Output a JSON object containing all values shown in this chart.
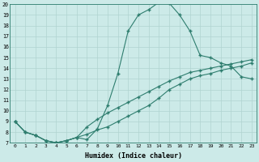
{
  "xlabel": "Humidex (Indice chaleur)",
  "x_values": [
    0,
    1,
    2,
    3,
    4,
    5,
    6,
    7,
    8,
    9,
    10,
    11,
    12,
    13,
    14,
    15,
    16,
    17,
    18,
    19,
    20,
    21,
    22,
    23
  ],
  "line_peak": [
    9.0,
    8.0,
    7.7,
    7.2,
    7.0,
    7.2,
    7.5,
    7.3,
    8.3,
    10.5,
    13.5,
    17.5,
    19.0,
    19.5,
    20.2,
    20.1,
    19.0,
    17.5,
    15.2,
    15.0,
    14.5,
    14.2,
    13.2,
    13.0
  ],
  "line_diag1": [
    9.0,
    8.0,
    7.7,
    7.2,
    7.0,
    7.2,
    7.5,
    7.8,
    8.2,
    8.5,
    9.0,
    9.5,
    10.0,
    10.5,
    11.2,
    12.0,
    12.5,
    13.0,
    13.3,
    13.5,
    13.8,
    14.0,
    14.2,
    14.5
  ],
  "line_diag2": [
    9.0,
    8.0,
    7.7,
    7.2,
    7.0,
    7.2,
    7.5,
    8.5,
    9.2,
    9.8,
    10.3,
    10.8,
    11.3,
    11.8,
    12.3,
    12.8,
    13.2,
    13.6,
    13.8,
    14.0,
    14.2,
    14.4,
    14.6,
    14.8
  ],
  "line_color": "#2e7d6e",
  "bg_color": "#cceae8",
  "grid_color": "#b0d4d0",
  "ylim_min": 7,
  "ylim_max": 20,
  "xlim_min": 0,
  "xlim_max": 23
}
